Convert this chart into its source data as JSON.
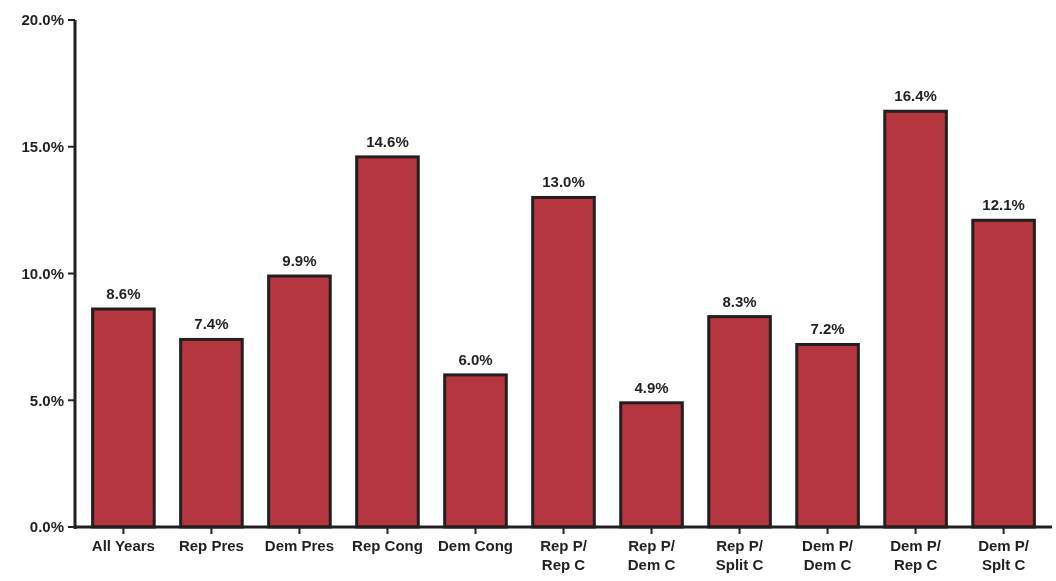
{
  "chart_data": {
    "type": "bar",
    "categories": [
      "All Years",
      "Rep Pres",
      "Dem Pres",
      "Rep Cong",
      "Dem Cong",
      "Rep P/ Rep C",
      "Rep P/ Dem C",
      "Rep P/ Split C",
      "Dem P/ Dem C",
      "Dem P/ Rep C",
      "Dem P/ Splt C"
    ],
    "values": [
      8.6,
      7.4,
      9.9,
      14.6,
      6.0,
      13.0,
      4.9,
      8.3,
      7.2,
      16.4,
      12.1
    ],
    "value_labels": [
      "8.6%",
      "7.4%",
      "9.9%",
      "14.6%",
      "6.0%",
      "13.0%",
      "4.9%",
      "8.3%",
      "7.2%",
      "16.4%",
      "12.1%"
    ],
    "color": "#b5363e",
    "ylim": [
      0,
      20
    ],
    "yticks": [
      {
        "value": 0,
        "label": "0.0%"
      },
      {
        "value": 5,
        "label": "5.0%"
      },
      {
        "value": 10,
        "label": "10.0%"
      },
      {
        "value": 15,
        "label": "15.0%"
      },
      {
        "value": 20,
        "label": "20.0%"
      }
    ],
    "grid": false
  }
}
